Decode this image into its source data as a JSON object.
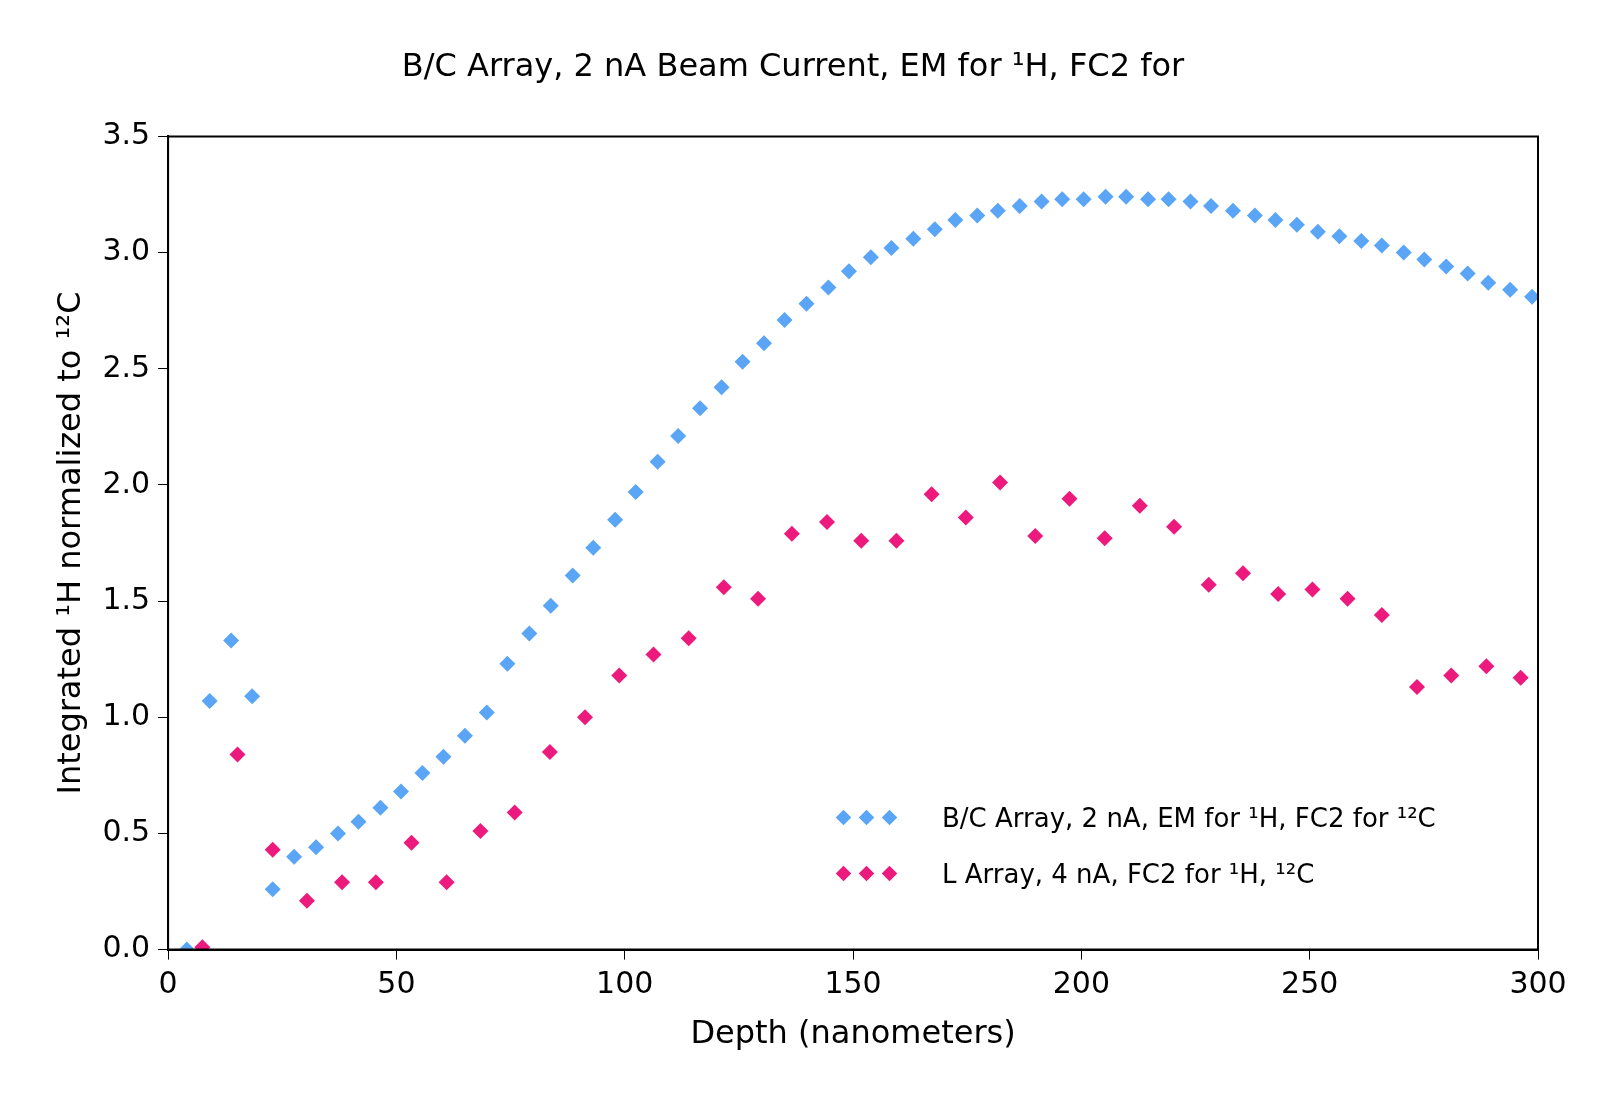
{
  "chart_data": {
    "type": "scatter",
    "title": "B/C Array, 2 nA Beam Current, EM for ¹H, FC2 for",
    "xlabel": "Depth (nanometers)",
    "ylabel": "Integrated ¹H normalized to ¹²C",
    "xlim": [
      0,
      300
    ],
    "xticks": [
      0,
      50,
      100,
      150,
      200,
      250,
      300
    ],
    "ylim": [
      0,
      3.5
    ],
    "yticks": [
      {
        "value": 0,
        "label": "0.0"
      },
      0.5,
      {
        "value": 1,
        "label": "1.0"
      },
      1.5,
      {
        "value": 2,
        "label": "2.0"
      },
      2.5,
      {
        "value": 3,
        "label": "3.0"
      },
      3.5
    ],
    "grid": false,
    "legend": "bottom right",
    "marker": "diamond",
    "series": [
      {
        "name": "B/C Array, 2 nA, EM for ¹H, FC2 for ¹²C",
        "color": "#5aa5f5",
        "x": [
          4.1,
          9.1,
          13.8,
          18.4,
          22.9,
          27.6,
          32.4,
          37.2,
          41.7,
          46.5,
          51,
          55.7,
          60.3,
          65,
          69.8,
          74.3,
          79.1,
          83.8,
          88.6,
          93.1,
          97.9,
          102.4,
          107.2,
          111.7,
          116.5,
          121.2,
          125.8,
          130.5,
          135,
          139.8,
          144.6,
          149.1,
          153.9,
          158.4,
          163.2,
          167.9,
          172.4,
          177.2,
          181.7,
          186.5,
          191.3,
          195.8,
          200.5,
          205.3,
          209.8,
          214.6,
          219.1,
          223.9,
          228.4,
          233.2,
          238,
          242.5,
          247.2,
          251.8,
          256.5,
          261.3,
          265.8,
          270.6,
          275.1,
          279.9,
          284.6,
          289.1,
          293.9,
          298.7
        ],
        "values": [
          0.0,
          1.07,
          1.33,
          1.09,
          0.26,
          0.4,
          0.44,
          0.5,
          0.55,
          0.61,
          0.68,
          0.76,
          0.83,
          0.92,
          1.02,
          1.23,
          1.36,
          1.48,
          1.61,
          1.73,
          1.85,
          1.97,
          2.1,
          2.21,
          2.33,
          2.42,
          2.53,
          2.61,
          2.71,
          2.78,
          2.85,
          2.92,
          2.98,
          3.02,
          3.06,
          3.1,
          3.14,
          3.16,
          3.18,
          3.2,
          3.22,
          3.23,
          3.23,
          3.24,
          3.24,
          3.23,
          3.23,
          3.22,
          3.2,
          3.18,
          3.16,
          3.14,
          3.12,
          3.09,
          3.07,
          3.05,
          3.03,
          3.0,
          2.97,
          2.94,
          2.91,
          2.87,
          2.84,
          2.81
        ]
      },
      {
        "name": "L Array, 4 nA, FC2 for ¹H, ¹²C",
        "color": "#ec1a7c",
        "x": [
          7.5,
          15.2,
          22.9,
          30.4,
          38.1,
          45.5,
          53.3,
          61,
          68.4,
          75.9,
          83.6,
          91.3,
          98.8,
          106.3,
          114,
          121.7,
          129.2,
          136.6,
          144.3,
          151.8,
          159.5,
          167.2,
          174.7,
          182.2,
          189.9,
          197.4,
          205.1,
          212.8,
          220.3,
          227.9,
          235.4,
          243.1,
          250.6,
          258.3,
          265.8,
          273.5,
          281,
          288.7,
          296.2
        ],
        "values": [
          0.01,
          0.84,
          0.43,
          0.21,
          0.29,
          0.29,
          0.46,
          0.29,
          0.51,
          0.59,
          0.85,
          1.0,
          1.18,
          1.27,
          1.34,
          1.56,
          1.51,
          1.79,
          1.84,
          1.76,
          1.76,
          1.96,
          1.86,
          2.01,
          1.78,
          1.94,
          1.77,
          1.91,
          1.82,
          1.57,
          1.62,
          1.53,
          1.55,
          1.51,
          1.44,
          1.13,
          1.18,
          1.22,
          1.17
        ]
      }
    ]
  }
}
